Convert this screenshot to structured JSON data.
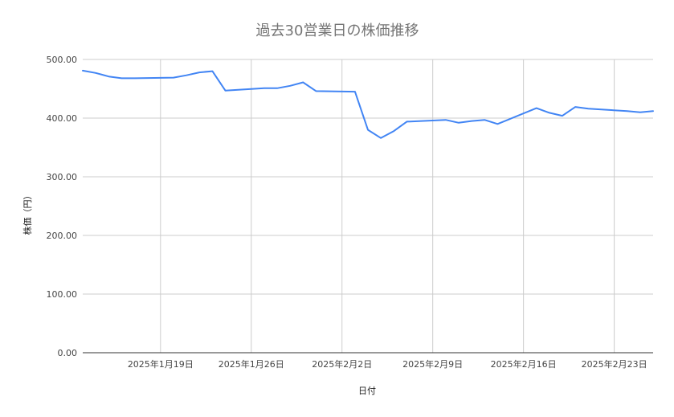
{
  "chart_data": {
    "type": "line",
    "title": "過去30営業日の株価推移",
    "xlabel": "日付",
    "ylabel": "株価（円）",
    "ylim": [
      0,
      500
    ],
    "yticks": [
      "0.00",
      "100.00",
      "200.00",
      "300.00",
      "400.00",
      "500.00"
    ],
    "ytick_values": [
      0,
      100,
      200,
      300,
      400,
      500
    ],
    "xlim": [
      "2025-01-13",
      "2025-02-26"
    ],
    "xticks": [
      {
        "date": "2025-01-19",
        "label": "2025年1月19日"
      },
      {
        "date": "2025-01-26",
        "label": "2025年1月26日"
      },
      {
        "date": "2025-02-02",
        "label": "2025年2月2日"
      },
      {
        "date": "2025-02-09",
        "label": "2025年2月9日"
      },
      {
        "date": "2025-02-16",
        "label": "2025年2月16日"
      },
      {
        "date": "2025-02-23",
        "label": "2025年2月23日"
      }
    ],
    "grid": true,
    "series_color": "#4285f4",
    "series": [
      {
        "x": [
          "2025-01-13",
          "2025-01-14",
          "2025-01-15",
          "2025-01-16",
          "2025-01-17",
          "2025-01-20",
          "2025-01-21",
          "2025-01-22",
          "2025-01-23",
          "2025-01-24",
          "2025-01-27",
          "2025-01-28",
          "2025-01-29",
          "2025-01-30",
          "2025-01-31",
          "2025-02-03",
          "2025-02-04",
          "2025-02-05",
          "2025-02-06",
          "2025-02-07",
          "2025-02-10",
          "2025-02-11",
          "2025-02-12",
          "2025-02-13",
          "2025-02-14",
          "2025-02-17",
          "2025-02-18",
          "2025-02-19",
          "2025-02-20",
          "2025-02-21",
          "2025-02-24",
          "2025-02-25",
          "2025-02-26"
        ],
        "values": [
          481,
          477,
          471,
          468,
          468,
          469,
          473,
          478,
          480,
          447,
          451,
          451,
          455,
          461,
          446,
          445,
          380,
          366,
          378,
          394,
          397,
          392,
          395,
          397,
          390,
          417,
          409,
          404,
          419,
          416,
          412,
          410,
          412
        ]
      }
    ]
  }
}
